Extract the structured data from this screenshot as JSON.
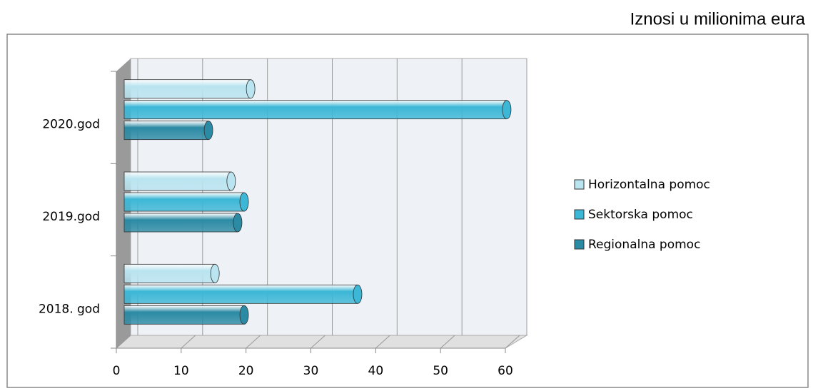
{
  "chart_data": {
    "type": "bar",
    "orientation": "horizontal",
    "annotation": "Iznosi u milionima eura",
    "categories": [
      "2018. god",
      "2019.god",
      "2020.god"
    ],
    "series": [
      {
        "name": "Horizontalna pomoc",
        "color": "#b9e4f0",
        "values": [
          14,
          16.5,
          19.5
        ]
      },
      {
        "name": "Sektorska pomoc",
        "color": "#3cb7d6",
        "values": [
          36,
          18.5,
          59
        ]
      },
      {
        "name": "Regionalna pomoc",
        "color": "#2b8aa4",
        "values": [
          18.5,
          17.5,
          13
        ]
      }
    ],
    "xlim": [
      0,
      60
    ],
    "xticks": [
      0,
      10,
      20,
      30,
      40,
      50,
      60
    ],
    "grid": true
  }
}
